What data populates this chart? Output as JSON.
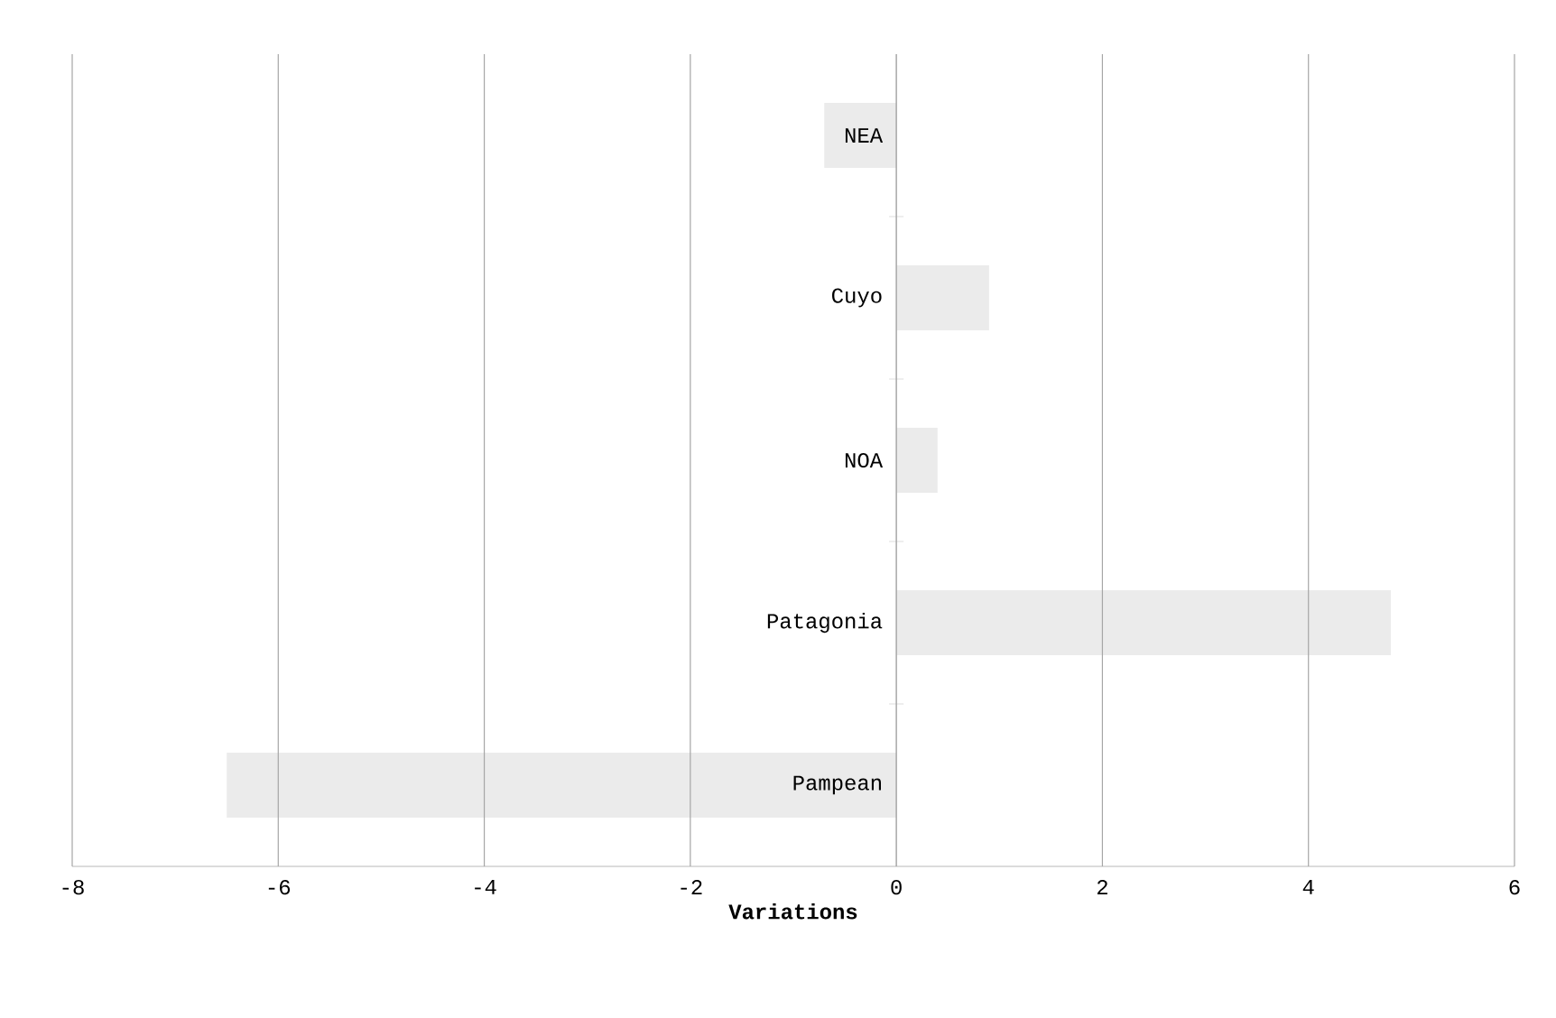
{
  "chart_data": {
    "type": "bar",
    "orientation": "horizontal",
    "categories": [
      "NEA",
      "Cuyo",
      "NOA",
      "Patagonia",
      "Pampean"
    ],
    "values": [
      -0.7,
      0.9,
      0.4,
      4.8,
      -6.5
    ],
    "color": "#ebebeb",
    "xlim": [
      -8,
      6
    ],
    "xticks": [
      -8,
      -6,
      -4,
      -2,
      0,
      2,
      4,
      6
    ],
    "xlabel": "Variations",
    "grid": "x"
  }
}
